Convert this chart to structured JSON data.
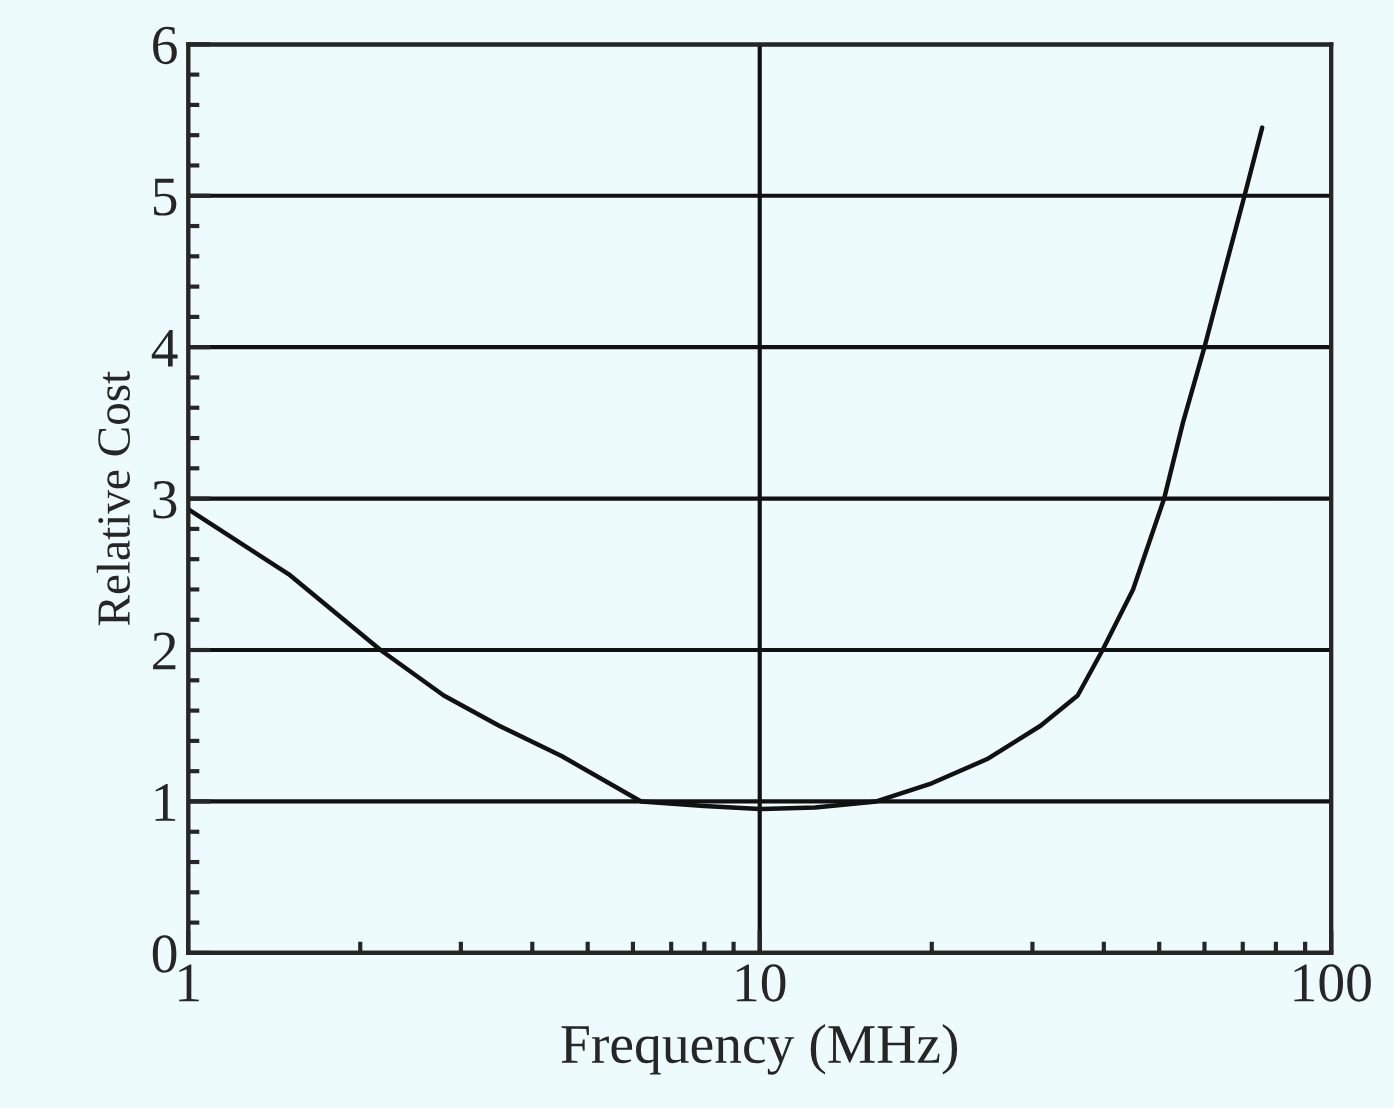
{
  "chart_data": {
    "type": "line",
    "xlabel": "Frequency (MHz)",
    "ylabel": "Relative Cost",
    "log": "x",
    "grid": true,
    "marker": "none",
    "line_style": "solid",
    "xlim": [
      1,
      100
    ],
    "xticks": [
      1,
      10,
      100
    ],
    "ylim": [
      0,
      6
    ],
    "yticks": [
      0,
      1,
      2,
      3,
      4,
      5,
      6
    ],
    "series": [
      {
        "color": "#111111",
        "x": [
          1,
          1.5,
          2.17,
          2.8,
          3.5,
          4.5,
          6.2,
          8,
          10,
          12.5,
          16,
          20,
          25,
          31,
          36,
          39.8,
          45,
          51,
          55,
          60,
          65,
          70.5,
          75.7
        ],
        "values": [
          2.93,
          2.5,
          2.0,
          1.7,
          1.5,
          1.3,
          1.0,
          0.97,
          0.95,
          0.96,
          1.0,
          1.12,
          1.28,
          1.5,
          1.7,
          2.0,
          2.4,
          3.0,
          3.5,
          4.0,
          4.5,
          5.0,
          5.45
        ]
      }
    ]
  }
}
